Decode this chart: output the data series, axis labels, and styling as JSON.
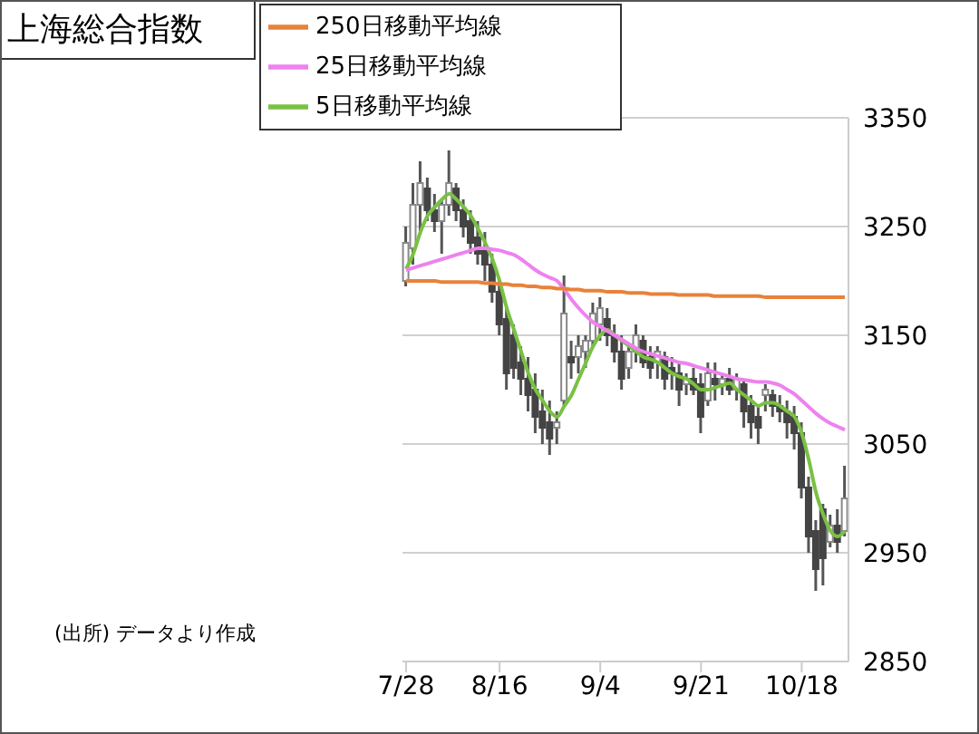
{
  "chart_data": {
    "type": "candlestick",
    "title": "上海総合指数",
    "categories": [
      "7/28",
      null,
      null,
      null,
      null,
      null,
      null,
      null,
      null,
      null,
      null,
      null,
      null,
      "8/16",
      null,
      null,
      null,
      null,
      null,
      null,
      null,
      null,
      null,
      null,
      null,
      null,
      null,
      "9/4",
      null,
      null,
      null,
      null,
      null,
      null,
      null,
      null,
      null,
      null,
      null,
      null,
      null,
      "9/21",
      null,
      null,
      null,
      null,
      null,
      null,
      null,
      null,
      null,
      null,
      null,
      null,
      null,
      "10/18",
      null,
      null,
      null,
      null,
      null,
      null
    ],
    "ohlc": [
      [
        3200,
        3250,
        3195,
        3235
      ],
      [
        3230,
        3290,
        3215,
        3270
      ],
      [
        3270,
        3310,
        3245,
        3290
      ],
      [
        3285,
        3295,
        3255,
        3265
      ],
      [
        3265,
        3280,
        3245,
        3255
      ],
      [
        3255,
        3275,
        3225,
        3270
      ],
      [
        3270,
        3320,
        3260,
        3290
      ],
      [
        3285,
        3290,
        3255,
        3265
      ],
      [
        3265,
        3275,
        3240,
        3250
      ],
      [
        3255,
        3265,
        3225,
        3235
      ],
      [
        3240,
        3255,
        3215,
        3225
      ],
      [
        3230,
        3245,
        3200,
        3215
      ],
      [
        3215,
        3225,
        3180,
        3190
      ],
      [
        3190,
        3200,
        3150,
        3160
      ],
      [
        3165,
        3175,
        3100,
        3115
      ],
      [
        3150,
        3160,
        3110,
        3120
      ],
      [
        3125,
        3140,
        3095,
        3110
      ],
      [
        3110,
        3130,
        3080,
        3095
      ],
      [
        3100,
        3115,
        3060,
        3075
      ],
      [
        3080,
        3100,
        3050,
        3065
      ],
      [
        3070,
        3090,
        3040,
        3055
      ],
      [
        3065,
        3080,
        3050,
        3070
      ],
      [
        3090,
        3205,
        3085,
        3170
      ],
      [
        3130,
        3145,
        3110,
        3125
      ],
      [
        3130,
        3150,
        3115,
        3140
      ],
      [
        3135,
        3150,
        3120,
        3145
      ],
      [
        3145,
        3180,
        3140,
        3170
      ],
      [
        3160,
        3185,
        3145,
        3175
      ],
      [
        3165,
        3175,
        3140,
        3150
      ],
      [
        3150,
        3160,
        3125,
        3135
      ],
      [
        3135,
        3150,
        3100,
        3110
      ],
      [
        3120,
        3140,
        3110,
        3135
      ],
      [
        3135,
        3160,
        3125,
        3150
      ],
      [
        3145,
        3150,
        3120,
        3125
      ],
      [
        3130,
        3140,
        3110,
        3120
      ],
      [
        3125,
        3140,
        3110,
        3135
      ],
      [
        3130,
        3135,
        3100,
        3110
      ],
      [
        3120,
        3130,
        3100,
        3115
      ],
      [
        3115,
        3125,
        3085,
        3100
      ],
      [
        3105,
        3115,
        3095,
        3110
      ],
      [
        3110,
        3120,
        3095,
        3100
      ],
      [
        3105,
        3115,
        3060,
        3075
      ],
      [
        3090,
        3125,
        3085,
        3115
      ],
      [
        3110,
        3125,
        3090,
        3105
      ],
      [
        3105,
        3115,
        3095,
        3110
      ],
      [
        3110,
        3120,
        3095,
        3100
      ],
      [
        3100,
        3115,
        3090,
        3110
      ],
      [
        3105,
        3110,
        3065,
        3080
      ],
      [
        3085,
        3095,
        3055,
        3070
      ],
      [
        3075,
        3085,
        3050,
        3065
      ],
      [
        3095,
        3105,
        3080,
        3100
      ],
      [
        3095,
        3100,
        3075,
        3085
      ],
      [
        3085,
        3095,
        3070,
        3080
      ],
      [
        3080,
        3090,
        3055,
        3070
      ],
      [
        3075,
        3085,
        3045,
        3060
      ],
      [
        3060,
        3070,
        3000,
        3010
      ],
      [
        3010,
        3020,
        2950,
        2965
      ],
      [
        2970,
        2980,
        2915,
        2935
      ],
      [
        2990,
        2995,
        2920,
        2945
      ],
      [
        2960,
        2985,
        2955,
        2975
      ],
      [
        2975,
        2990,
        2950,
        2960
      ],
      [
        2970,
        3030,
        2965,
        3000
      ]
    ],
    "series": [
      {
        "type": "line",
        "name": "5日移動平均線",
        "color": "#7ac143",
        "values": [
          3211,
          3225,
          3245,
          3260,
          3268,
          3275,
          3280,
          3275,
          3268,
          3260,
          3248,
          3235,
          3220,
          3200,
          3175,
          3155,
          3135,
          3115,
          3100,
          3090,
          3080,
          3075,
          3085,
          3095,
          3110,
          3125,
          3140,
          3150,
          3155,
          3150,
          3145,
          3140,
          3135,
          3130,
          3128,
          3125,
          3120,
          3115,
          3112,
          3110,
          3105,
          3100,
          3100,
          3102,
          3104,
          3106,
          3100,
          3095,
          3090,
          3085,
          3088,
          3088,
          3085,
          3080,
          3075,
          3060,
          3035,
          3005,
          2985,
          2970,
          2965,
          2970
        ]
      },
      {
        "type": "line",
        "name": "25日移動平均線",
        "color": "#ee82ee",
        "values": [
          3210,
          3212,
          3214,
          3216,
          3218,
          3220,
          3222,
          3224,
          3226,
          3228,
          3230,
          3230,
          3229,
          3228,
          3226,
          3224,
          3220,
          3215,
          3210,
          3206,
          3203,
          3200,
          3192,
          3183,
          3175,
          3168,
          3162,
          3158,
          3154,
          3150,
          3146,
          3142,
          3138,
          3135,
          3133,
          3131,
          3129,
          3127,
          3125,
          3124,
          3122,
          3120,
          3118,
          3116,
          3114,
          3112,
          3110,
          3109,
          3108,
          3107,
          3107,
          3106,
          3104,
          3100,
          3096,
          3090,
          3084,
          3078,
          3073,
          3069,
          3066,
          3063
        ]
      },
      {
        "type": "line",
        "name": "250日移動平均線",
        "color": "#e8823a",
        "values": [
          3200,
          3200,
          3200,
          3200,
          3200,
          3199,
          3199,
          3199,
          3199,
          3199,
          3199,
          3198,
          3198,
          3197,
          3197,
          3196,
          3196,
          3195,
          3195,
          3194,
          3194,
          3193,
          3193,
          3192,
          3192,
          3191,
          3191,
          3191,
          3190,
          3190,
          3190,
          3189,
          3189,
          3189,
          3188,
          3188,
          3188,
          3188,
          3187,
          3187,
          3187,
          3187,
          3187,
          3186,
          3186,
          3186,
          3186,
          3186,
          3186,
          3186,
          3185,
          3185,
          3185,
          3185,
          3185,
          3185,
          3185,
          3185,
          3185,
          3185,
          3185,
          3185
        ]
      }
    ],
    "ylim": [
      2850,
      3350
    ],
    "yticks": [
      2850,
      2950,
      3050,
      3150,
      3250,
      3350
    ],
    "grid": "y",
    "legend": "top left",
    "annotations": [
      "(出所) データより作成"
    ]
  }
}
